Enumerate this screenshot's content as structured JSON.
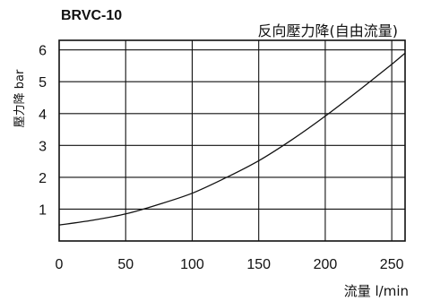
{
  "chart_data": {
    "type": "line",
    "model": "BRVC-10",
    "title": "反向壓力降(自由流量)",
    "xlabel": "流量 l/min",
    "ylabel": "壓力降 bar",
    "xlim": [
      0,
      260
    ],
    "ylim": [
      0,
      6.3
    ],
    "x_ticks": [
      0,
      50,
      100,
      150,
      200,
      250
    ],
    "y_ticks": [
      1,
      2,
      3,
      4,
      5,
      6
    ],
    "grid": true,
    "series": [
      {
        "name": "",
        "x": [
          0,
          25,
          50,
          75,
          100,
          125,
          150,
          175,
          200,
          225,
          250,
          260
        ],
        "y": [
          0.5,
          0.65,
          0.85,
          1.15,
          1.5,
          1.98,
          2.52,
          3.18,
          3.92,
          4.72,
          5.55,
          5.9
        ]
      }
    ]
  }
}
